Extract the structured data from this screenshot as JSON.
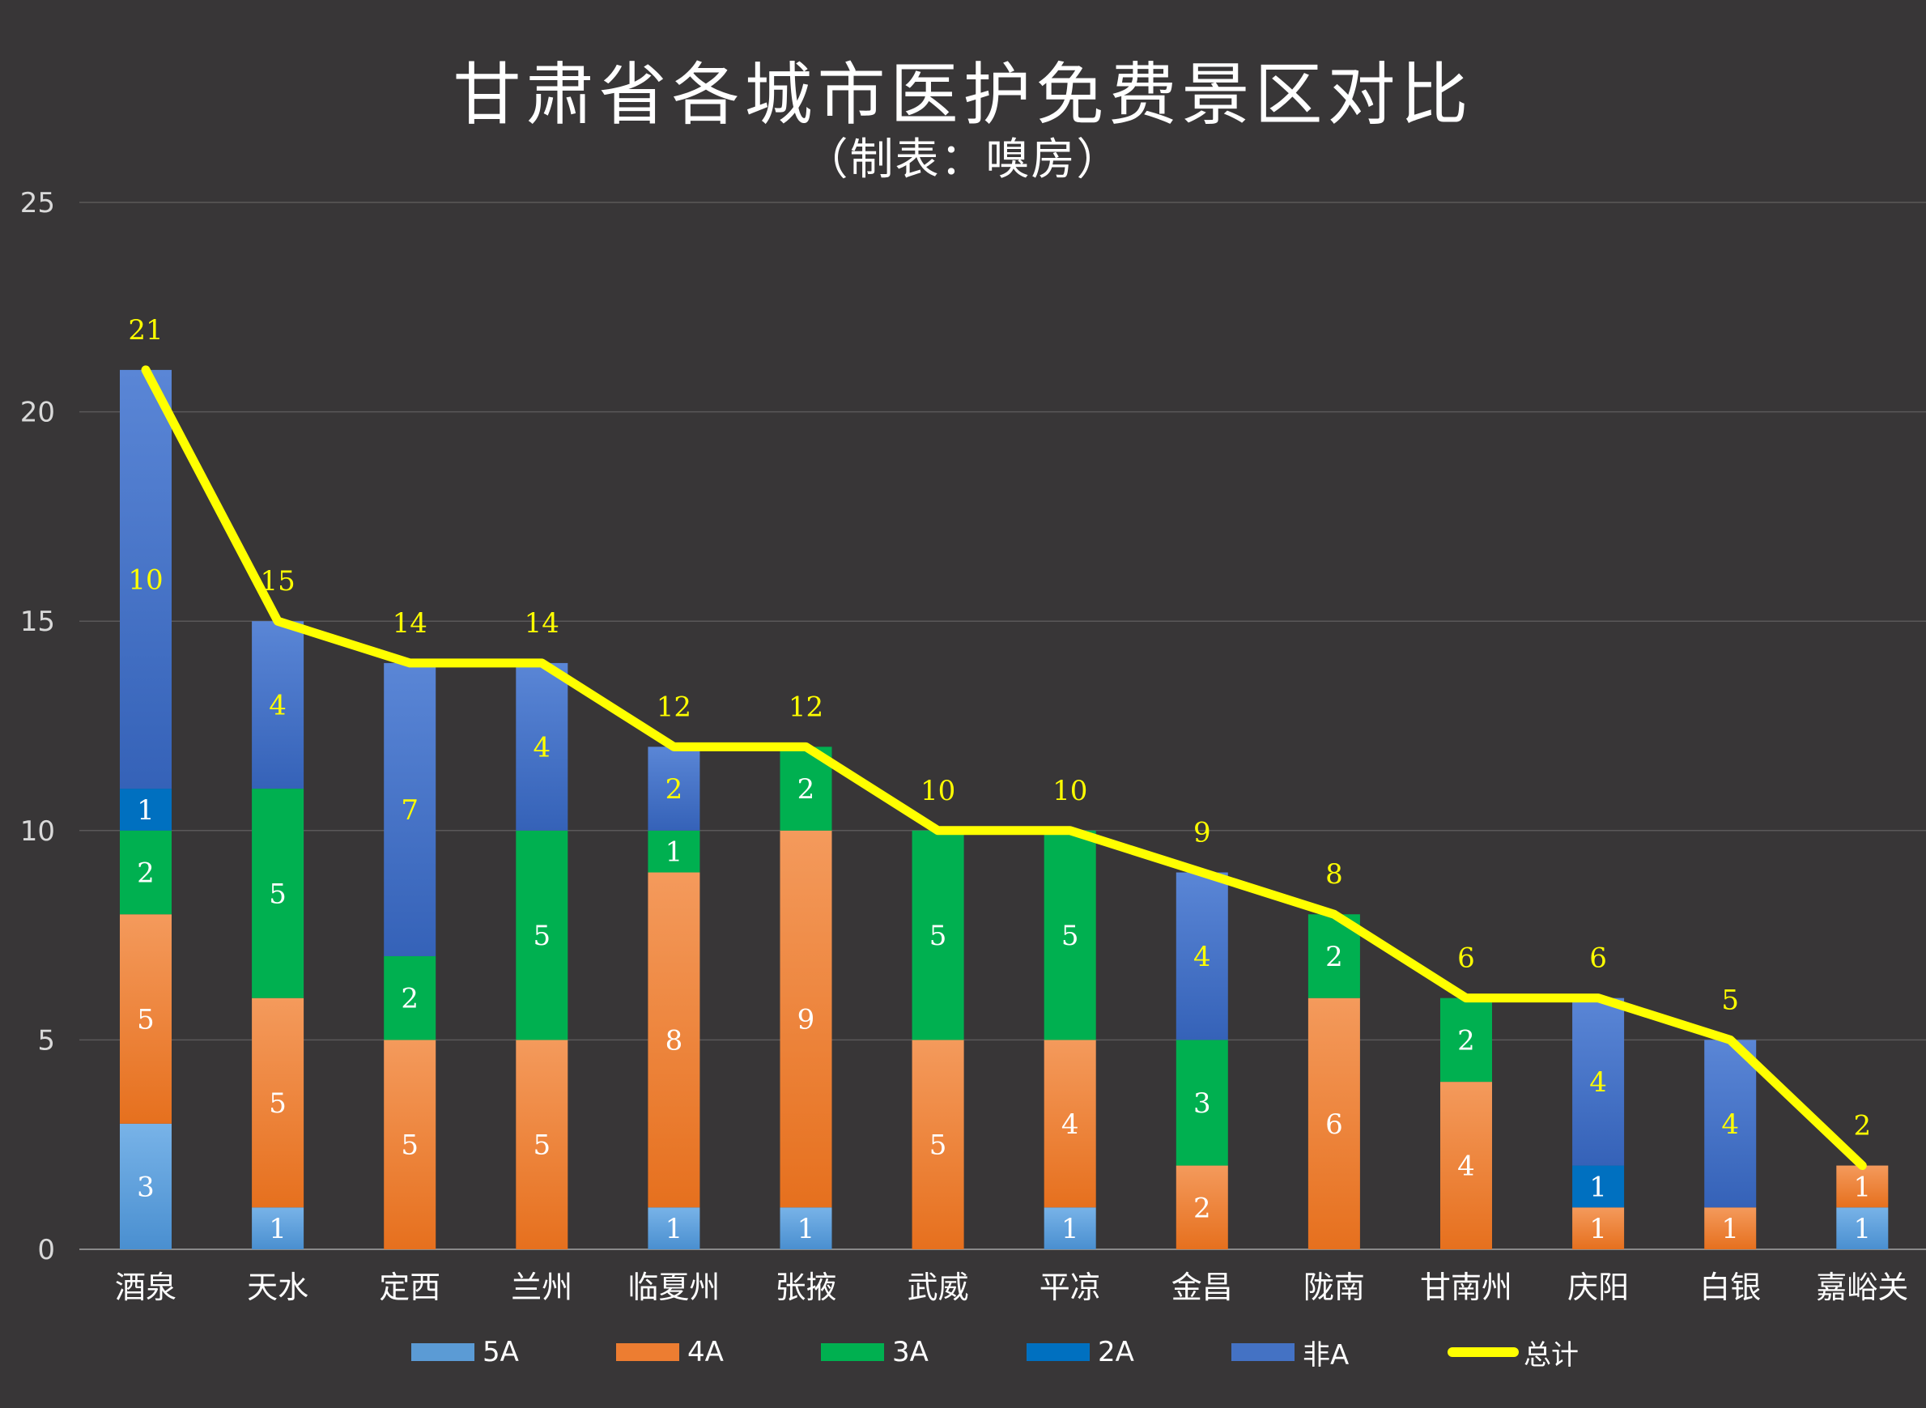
{
  "header": {
    "title": "甘肃省各城市医护免费景区对比",
    "subtitle": "（制表：嗅房）"
  },
  "chart_data": {
    "type": "bar",
    "stacked": true,
    "categories": [
      "酒泉",
      "天水",
      "定西",
      "兰州",
      "临夏州",
      "张掖",
      "武威",
      "平凉",
      "金昌",
      "陇南",
      "甘南州",
      "庆阳",
      "白银",
      "嘉峪关"
    ],
    "series": [
      {
        "name": "5A",
        "color": "#5b9bd5",
        "values": [
          3,
          1,
          0,
          0,
          1,
          1,
          0,
          1,
          0,
          0,
          0,
          0,
          0,
          1
        ]
      },
      {
        "name": "4A",
        "color": "#ed7d31",
        "values": [
          5,
          5,
          5,
          5,
          8,
          9,
          5,
          4,
          2,
          6,
          4,
          1,
          1,
          1
        ]
      },
      {
        "name": "3A",
        "color": "#00b050",
        "values": [
          2,
          5,
          2,
          5,
          1,
          2,
          5,
          5,
          3,
          2,
          2,
          0,
          0,
          0
        ]
      },
      {
        "name": "2A",
        "color": "#0070c0",
        "values": [
          1,
          0,
          0,
          0,
          0,
          0,
          0,
          0,
          0,
          0,
          0,
          1,
          0,
          0
        ]
      },
      {
        "name": "非A",
        "color": "#4472c4",
        "values": [
          10,
          4,
          7,
          4,
          2,
          0,
          0,
          0,
          4,
          0,
          0,
          4,
          4,
          0
        ]
      }
    ],
    "line": {
      "name": "总计",
      "color": "#ffff00",
      "values": [
        21,
        15,
        14,
        14,
        12,
        12,
        10,
        10,
        9,
        8,
        6,
        6,
        5,
        2
      ]
    },
    "ylim": [
      0,
      25
    ],
    "yticks": [
      0,
      5,
      10,
      15,
      20,
      25
    ],
    "grid": true,
    "legend": "bottom"
  }
}
